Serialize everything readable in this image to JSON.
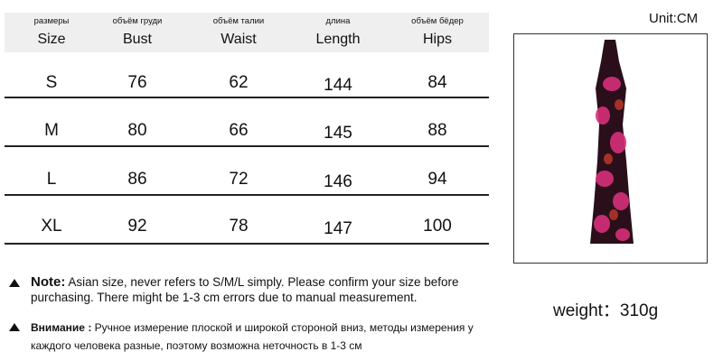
{
  "unit": "Unit:CM",
  "headers": [
    {
      "ru": "размеры",
      "en": "Size"
    },
    {
      "ru": "объём груди",
      "en": "Bust"
    },
    {
      "ru": "объём талии",
      "en": "Waist"
    },
    {
      "ru": "длина",
      "en": "Length"
    },
    {
      "ru": "объём бёдер",
      "en": "Hips"
    }
  ],
  "rows": [
    [
      "S",
      "76",
      "62",
      "144",
      "84"
    ],
    [
      "M",
      "80",
      "66",
      "145",
      "88"
    ],
    [
      "L",
      "86",
      "72",
      "146",
      "94"
    ],
    [
      "XL",
      "92",
      "78",
      "147",
      "100"
    ]
  ],
  "note": {
    "label": "Note:",
    "text": "Asian size, never refers to S/M/L simply. Please confirm your size before purchasing. There might be 1-3 cm errors due to manual measurement."
  },
  "note_ru": {
    "label": "Внимание :",
    "text": "Ручное измерение плоской и широкой стороной вниз, методы измерения у каждого человека разные, поэтому возможна неточность в 1-3 см"
  },
  "weight": "weight：310g",
  "colors": {
    "header_bg": "#efefef",
    "dress_base": "#2a0f1a",
    "flower": "#d6307a"
  }
}
